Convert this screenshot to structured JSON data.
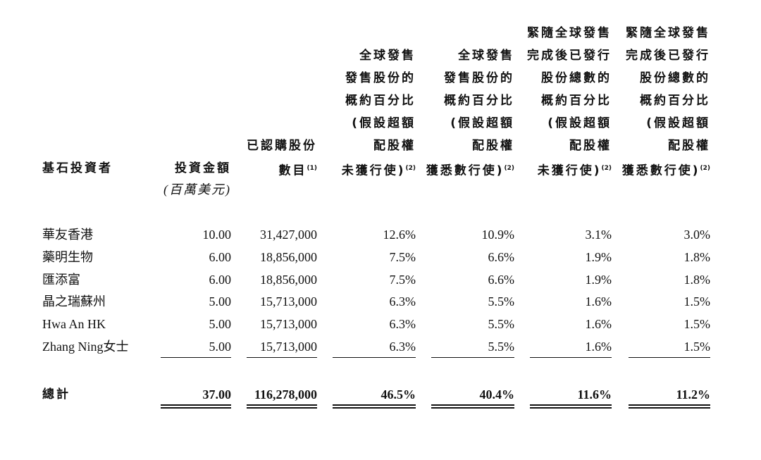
{
  "table": {
    "headers": [
      {
        "lines": [
          "基石投資者"
        ]
      },
      {
        "lines": [
          "投資金額"
        ],
        "unit": "(百萬美元)"
      },
      {
        "lines": [
          "已認購股份",
          "數目"
        ],
        "note": "(1)"
      },
      {
        "lines": [
          "全球發售",
          "發售股份的",
          "概約百分比",
          "(假設超額",
          "配股權",
          "未獲行使)"
        ],
        "note": "(2)"
      },
      {
        "lines": [
          "全球發售",
          "發售股份的",
          "概約百分比",
          "(假設超額",
          "配股權",
          "獲悉數行使)"
        ],
        "note": "(2)"
      },
      {
        "lines": [
          "緊隨全球發售",
          "完成後已發行",
          "股份總數的",
          "概約百分比",
          "(假設超額",
          "配股權",
          "未獲行使)"
        ],
        "note": "(2)"
      },
      {
        "lines": [
          "緊隨全球發售",
          "完成後已發行",
          "股份總數的",
          "概約百分比",
          "(假設超額",
          "配股權",
          "獲悉數行使)"
        ],
        "note": "(2)"
      }
    ],
    "rows": [
      [
        "華友香港",
        "10.00",
        "31,427,000",
        "12.6%",
        "10.9%",
        "3.1%",
        "3.0%"
      ],
      [
        "藥明生物",
        "6.00",
        "18,856,000",
        "7.5%",
        "6.6%",
        "1.9%",
        "1.8%"
      ],
      [
        "匯添富",
        "6.00",
        "18,856,000",
        "7.5%",
        "6.6%",
        "1.9%",
        "1.8%"
      ],
      [
        "晶之瑞蘇州",
        "5.00",
        "15,713,000",
        "6.3%",
        "5.5%",
        "1.6%",
        "1.5%"
      ],
      [
        "Hwa An HK",
        "5.00",
        "15,713,000",
        "6.3%",
        "5.5%",
        "1.6%",
        "1.5%"
      ],
      [
        "Zhang Ning女士",
        "5.00",
        "15,713,000",
        "6.3%",
        "5.5%",
        "1.6%",
        "1.5%"
      ]
    ],
    "total": [
      "總計",
      "37.00",
      "116,278,000",
      "46.5%",
      "40.4%",
      "11.6%",
      "11.2%"
    ]
  }
}
